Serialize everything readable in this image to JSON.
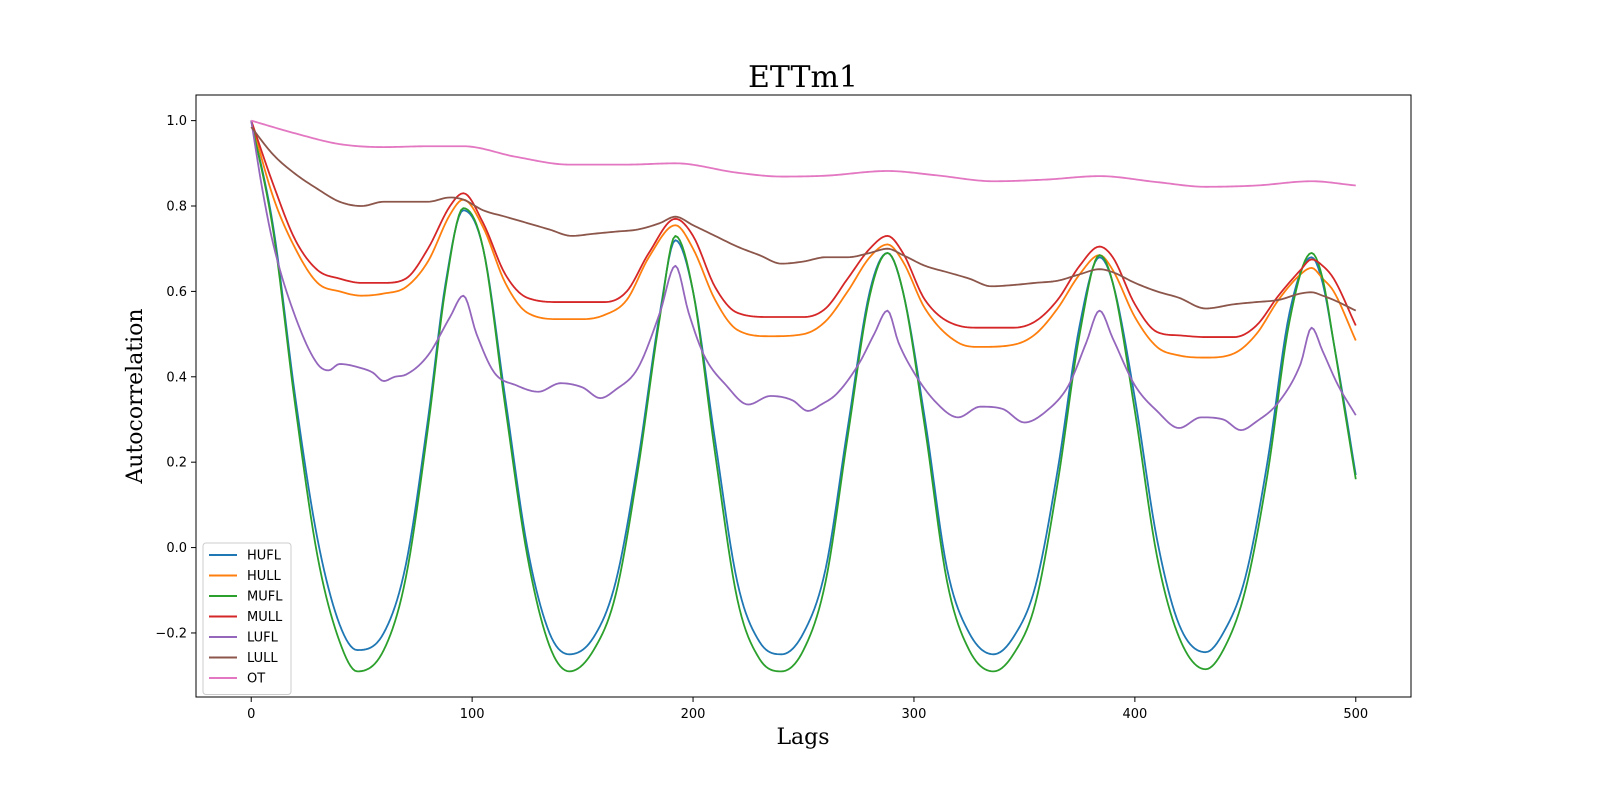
{
  "chart_data": {
    "type": "line",
    "title": "ETTm1",
    "xlabel": "Lags",
    "ylabel": "Autocorrelation",
    "xlim": [
      -25,
      525
    ],
    "ylim": [
      -0.35,
      1.06
    ],
    "xticks": [
      0,
      100,
      200,
      300,
      400,
      500
    ],
    "yticks": [
      -0.2,
      0.0,
      0.2,
      0.4,
      0.6,
      0.8,
      1.0
    ],
    "xtick_labels": [
      "0",
      "100",
      "200",
      "300",
      "400",
      "500"
    ],
    "ytick_labels": [
      "−0.2",
      "0.0",
      "0.2",
      "0.4",
      "0.6",
      "0.8",
      "1.0"
    ],
    "grid": false,
    "legend_position": "lower-left",
    "series": [
      {
        "name": "HUFL",
        "color": "#1f77b4",
        "x": [
          0,
          10,
          20,
          30,
          40,
          48,
          60,
          70,
          80,
          88,
          96,
          105,
          115,
          125,
          135,
          144,
          155,
          165,
          175,
          185,
          192,
          200,
          210,
          220,
          230,
          240,
          250,
          260,
          270,
          280,
          288,
          295,
          305,
          315,
          325,
          336,
          345,
          355,
          365,
          375,
          384,
          390,
          400,
          410,
          420,
          432,
          440,
          450,
          460,
          470,
          480,
          485,
          490,
          495,
          500
        ],
        "y": [
          1.0,
          0.75,
          0.35,
          0.02,
          -0.18,
          -0.24,
          -0.2,
          -0.04,
          0.3,
          0.62,
          0.79,
          0.7,
          0.35,
          0.0,
          -0.2,
          -0.25,
          -0.21,
          -0.08,
          0.2,
          0.55,
          0.72,
          0.6,
          0.25,
          -0.08,
          -0.22,
          -0.25,
          -0.2,
          -0.05,
          0.28,
          0.6,
          0.69,
          0.6,
          0.3,
          -0.05,
          -0.2,
          -0.25,
          -0.21,
          -0.09,
          0.18,
          0.52,
          0.68,
          0.62,
          0.35,
          0.02,
          -0.18,
          -0.245,
          -0.2,
          -0.07,
          0.2,
          0.55,
          0.68,
          0.62,
          0.48,
          0.33,
          0.17
        ]
      },
      {
        "name": "HULL",
        "color": "#ff7f0e",
        "x": [
          0,
          10,
          20,
          30,
          40,
          50,
          60,
          70,
          80,
          90,
          96,
          105,
          115,
          125,
          140,
          150,
          160,
          170,
          180,
          192,
          200,
          210,
          220,
          235,
          250,
          260,
          270,
          280,
          288,
          295,
          305,
          320,
          330,
          345,
          355,
          365,
          375,
          384,
          390,
          400,
          410,
          420,
          432,
          445,
          455,
          465,
          475,
          480,
          485,
          490,
          500
        ],
        "y": [
          1.0,
          0.82,
          0.7,
          0.62,
          0.6,
          0.59,
          0.595,
          0.61,
          0.67,
          0.78,
          0.815,
          0.75,
          0.62,
          0.55,
          0.535,
          0.535,
          0.545,
          0.58,
          0.68,
          0.755,
          0.7,
          0.58,
          0.51,
          0.495,
          0.5,
          0.53,
          0.6,
          0.68,
          0.71,
          0.67,
          0.56,
          0.48,
          0.47,
          0.475,
          0.5,
          0.56,
          0.64,
          0.685,
          0.65,
          0.54,
          0.47,
          0.45,
          0.445,
          0.455,
          0.5,
          0.58,
          0.64,
          0.655,
          0.63,
          0.6,
          0.485
        ]
      },
      {
        "name": "MUFL",
        "color": "#2ca02c",
        "x": [
          0,
          10,
          20,
          30,
          40,
          48,
          60,
          70,
          80,
          88,
          96,
          105,
          115,
          125,
          135,
          144,
          155,
          165,
          175,
          185,
          192,
          200,
          210,
          220,
          230,
          240,
          250,
          260,
          270,
          280,
          288,
          295,
          305,
          315,
          325,
          336,
          345,
          355,
          365,
          375,
          384,
          390,
          400,
          410,
          420,
          432,
          440,
          450,
          460,
          470,
          480,
          485,
          490,
          495,
          500
        ],
        "y": [
          1.0,
          0.74,
          0.33,
          -0.02,
          -0.22,
          -0.29,
          -0.24,
          -0.07,
          0.28,
          0.61,
          0.795,
          0.7,
          0.33,
          -0.02,
          -0.23,
          -0.29,
          -0.24,
          -0.11,
          0.18,
          0.54,
          0.73,
          0.6,
          0.22,
          -0.12,
          -0.26,
          -0.29,
          -0.24,
          -0.08,
          0.26,
          0.59,
          0.69,
          0.6,
          0.28,
          -0.08,
          -0.24,
          -0.29,
          -0.25,
          -0.13,
          0.15,
          0.5,
          0.685,
          0.62,
          0.32,
          -0.02,
          -0.21,
          -0.285,
          -0.24,
          -0.1,
          0.17,
          0.53,
          0.69,
          0.63,
          0.48,
          0.32,
          0.16
        ]
      },
      {
        "name": "MULL",
        "color": "#d62728",
        "x": [
          0,
          10,
          20,
          30,
          40,
          50,
          60,
          70,
          80,
          90,
          96,
          105,
          115,
          125,
          140,
          150,
          160,
          170,
          180,
          192,
          200,
          210,
          220,
          235,
          250,
          260,
          270,
          280,
          288,
          295,
          305,
          320,
          330,
          345,
          355,
          365,
          375,
          384,
          390,
          400,
          410,
          420,
          432,
          445,
          455,
          465,
          475,
          480,
          485,
          490,
          500
        ],
        "y": [
          1.0,
          0.85,
          0.72,
          0.65,
          0.63,
          0.62,
          0.62,
          0.63,
          0.7,
          0.8,
          0.83,
          0.76,
          0.64,
          0.585,
          0.575,
          0.575,
          0.575,
          0.6,
          0.69,
          0.77,
          0.73,
          0.61,
          0.55,
          0.54,
          0.54,
          0.56,
          0.63,
          0.7,
          0.73,
          0.69,
          0.58,
          0.52,
          0.515,
          0.515,
          0.53,
          0.58,
          0.66,
          0.705,
          0.68,
          0.57,
          0.505,
          0.497,
          0.493,
          0.493,
          0.52,
          0.59,
          0.65,
          0.675,
          0.66,
          0.63,
          0.52
        ]
      },
      {
        "name": "LUFL",
        "color": "#9467bd",
        "x": [
          0,
          5,
          10,
          20,
          30,
          35,
          40,
          50,
          55,
          60,
          65,
          70,
          80,
          90,
          96,
          102,
          110,
          120,
          130,
          140,
          150,
          158,
          165,
          175,
          185,
          192,
          198,
          205,
          215,
          225,
          235,
          245,
          252,
          258,
          265,
          275,
          282,
          288,
          293,
          300,
          310,
          320,
          330,
          340,
          350,
          360,
          370,
          378,
          384,
          390,
          400,
          410,
          420,
          430,
          440,
          448,
          455,
          465,
          475,
          480,
          485,
          492,
          500
        ],
        "y": [
          1.0,
          0.84,
          0.71,
          0.54,
          0.43,
          0.415,
          0.43,
          0.42,
          0.41,
          0.39,
          0.4,
          0.405,
          0.45,
          0.54,
          0.59,
          0.5,
          0.41,
          0.38,
          0.365,
          0.385,
          0.375,
          0.35,
          0.37,
          0.42,
          0.55,
          0.66,
          0.55,
          0.45,
          0.38,
          0.335,
          0.355,
          0.345,
          0.32,
          0.335,
          0.36,
          0.43,
          0.5,
          0.555,
          0.48,
          0.41,
          0.34,
          0.305,
          0.33,
          0.325,
          0.293,
          0.32,
          0.38,
          0.48,
          0.555,
          0.49,
          0.38,
          0.32,
          0.28,
          0.305,
          0.3,
          0.275,
          0.295,
          0.34,
          0.43,
          0.515,
          0.46,
          0.38,
          0.31
        ]
      },
      {
        "name": "LULL",
        "color": "#8c564b",
        "x": [
          0,
          10,
          20,
          30,
          40,
          50,
          60,
          70,
          80,
          90,
          96,
          105,
          115,
          125,
          135,
          145,
          155,
          165,
          175,
          185,
          192,
          200,
          210,
          220,
          230,
          240,
          250,
          260,
          270,
          280,
          288,
          295,
          305,
          315,
          325,
          335,
          345,
          355,
          365,
          375,
          384,
          390,
          400,
          410,
          420,
          432,
          445,
          455,
          465,
          475,
          480,
          485,
          490,
          500
        ],
        "y": [
          0.985,
          0.92,
          0.875,
          0.84,
          0.81,
          0.8,
          0.81,
          0.81,
          0.81,
          0.82,
          0.815,
          0.79,
          0.775,
          0.76,
          0.745,
          0.73,
          0.735,
          0.74,
          0.745,
          0.76,
          0.775,
          0.755,
          0.73,
          0.705,
          0.685,
          0.665,
          0.67,
          0.68,
          0.68,
          0.69,
          0.7,
          0.685,
          0.66,
          0.645,
          0.63,
          0.612,
          0.615,
          0.62,
          0.625,
          0.64,
          0.652,
          0.645,
          0.62,
          0.6,
          0.585,
          0.56,
          0.57,
          0.575,
          0.58,
          0.595,
          0.598,
          0.59,
          0.58,
          0.555
        ]
      },
      {
        "name": "OT",
        "color": "#e377c2",
        "x": [
          0,
          20,
          40,
          60,
          80,
          96,
          120,
          144,
          170,
          192,
          220,
          240,
          260,
          288,
          310,
          336,
          360,
          384,
          410,
          432,
          455,
          480,
          500
        ],
        "y": [
          1.0,
          0.97,
          0.945,
          0.938,
          0.94,
          0.94,
          0.915,
          0.897,
          0.897,
          0.9,
          0.878,
          0.869,
          0.871,
          0.882,
          0.872,
          0.858,
          0.862,
          0.87,
          0.856,
          0.845,
          0.848,
          0.858,
          0.848
        ]
      }
    ]
  }
}
